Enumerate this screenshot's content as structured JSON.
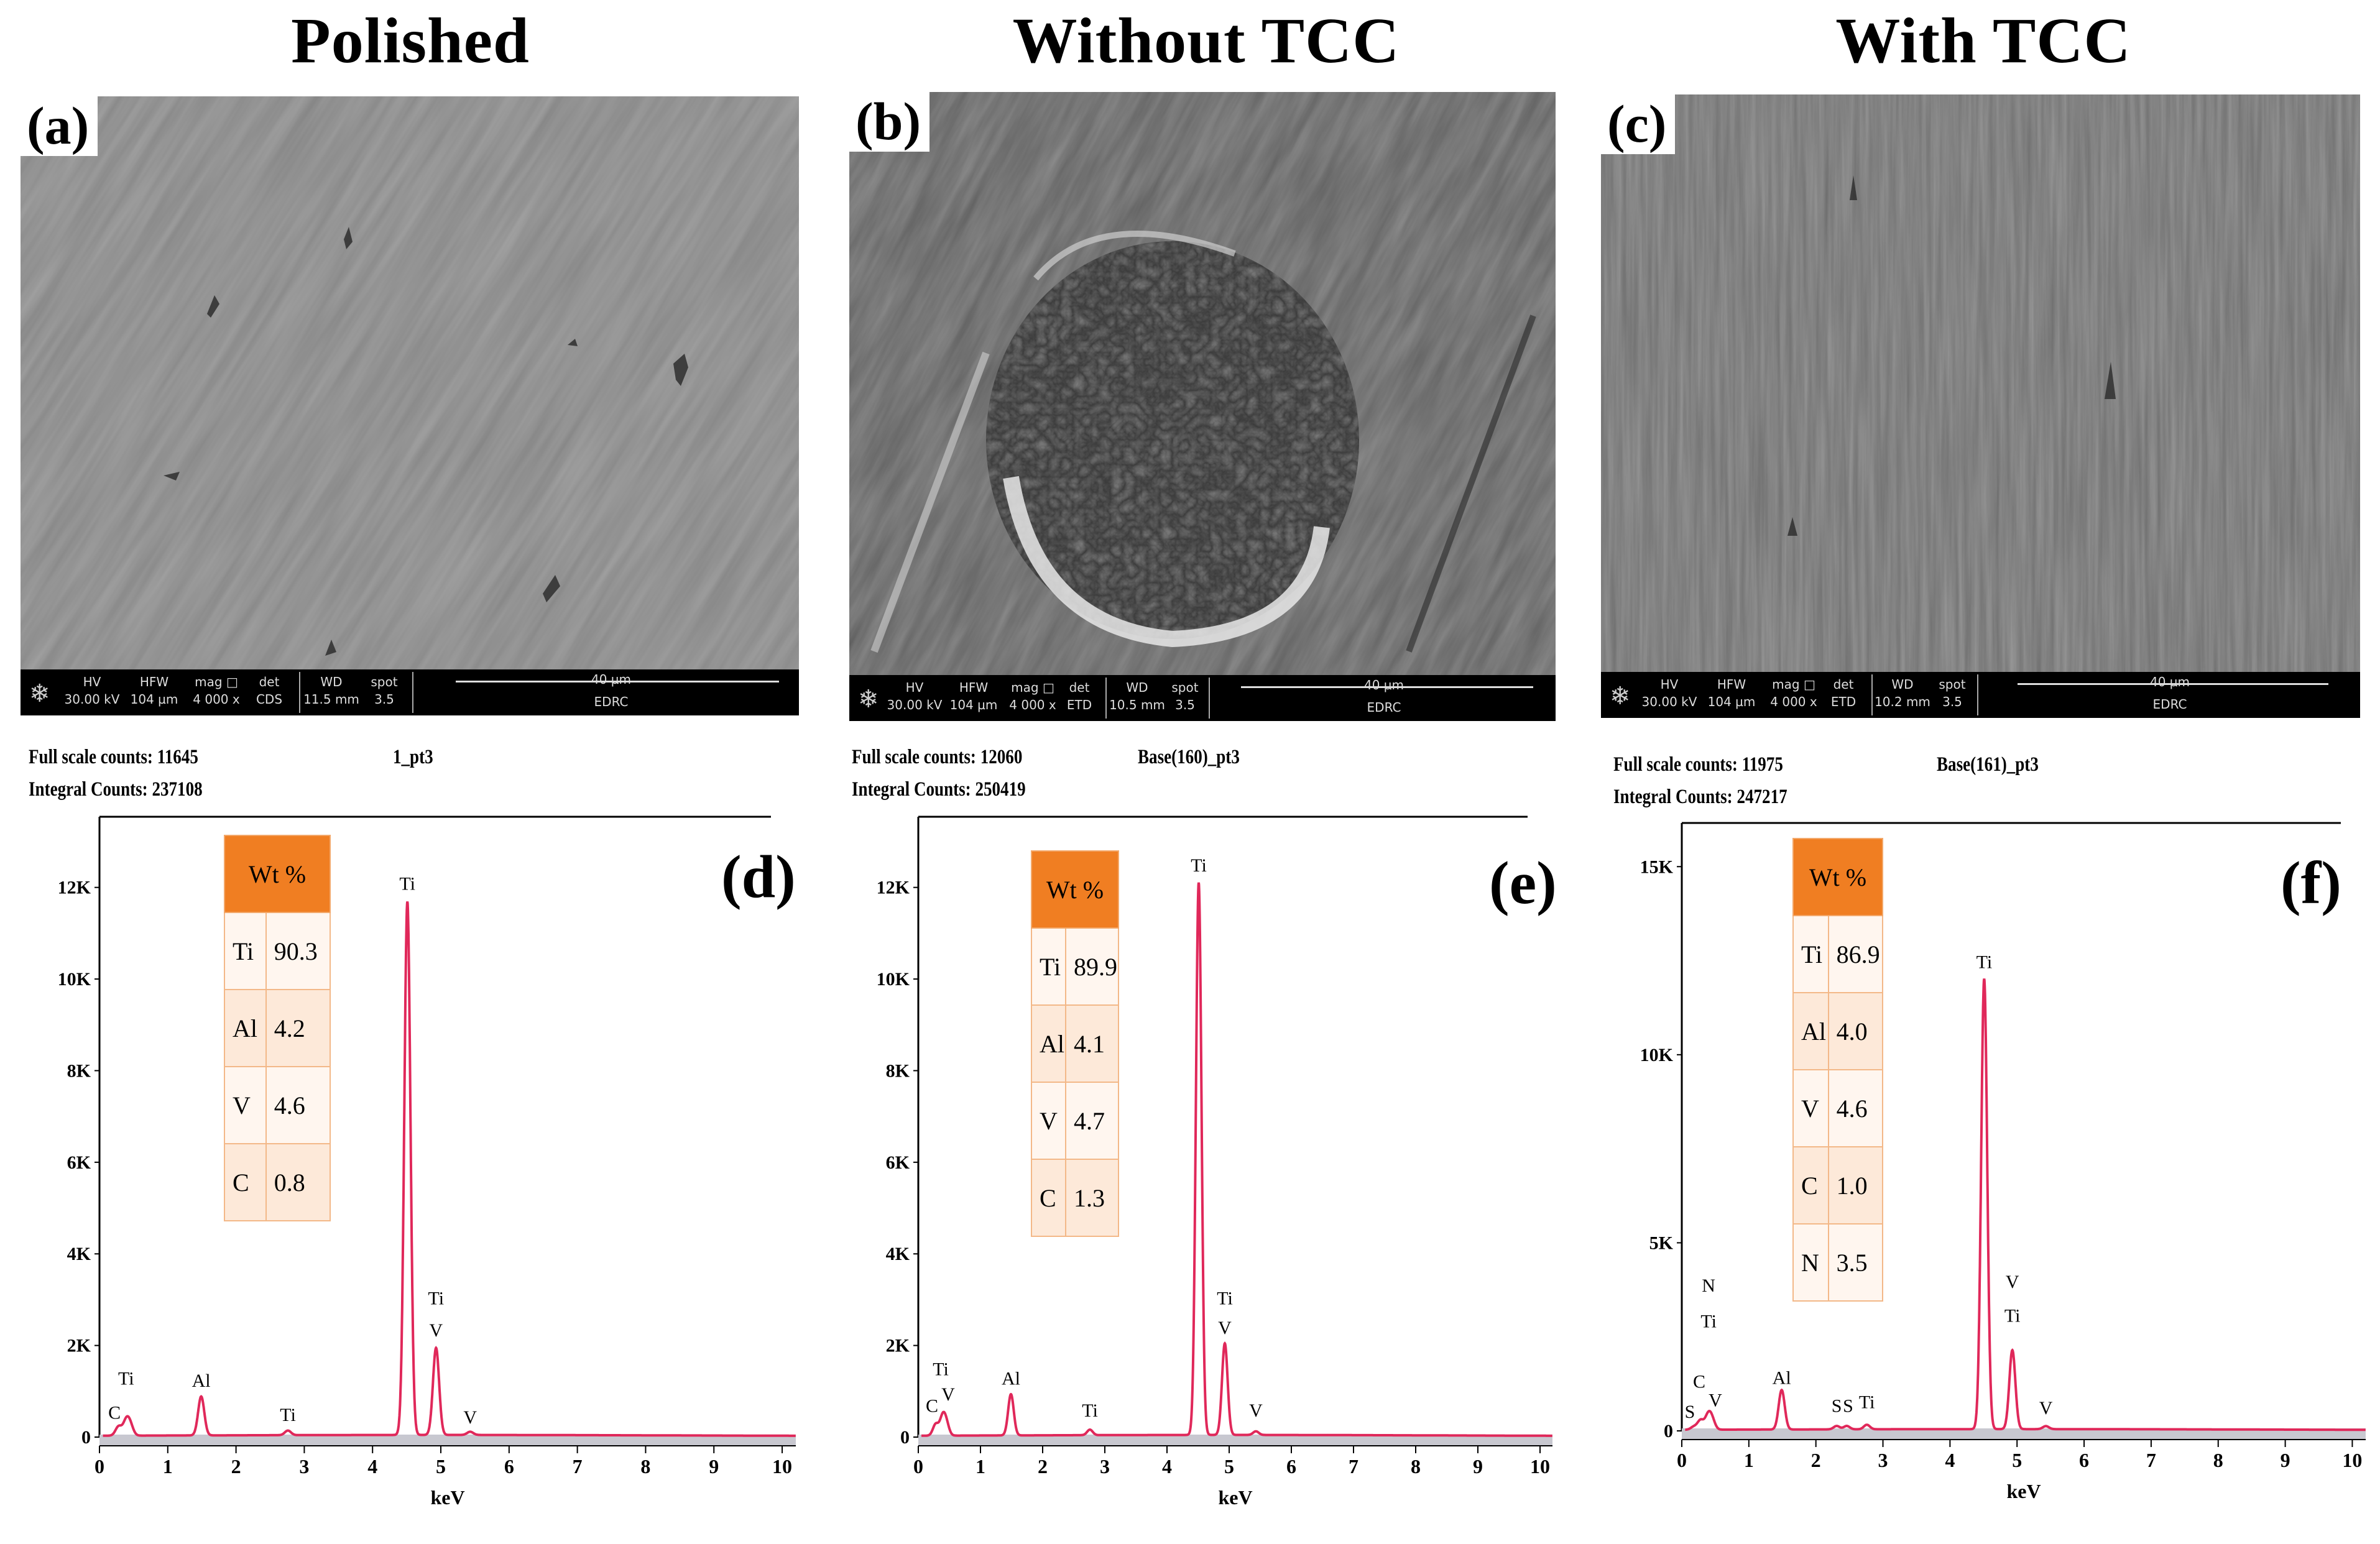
{
  "titles": [
    "Polished",
    "Without TCC",
    "With TCC"
  ],
  "sem_panels": [
    {
      "label": "(a)",
      "bar": {
        "hv_label": "HV",
        "hv": "30.00 kV",
        "hfw_label": "HFW",
        "hfw": "104 µm",
        "mag_label": "mag □",
        "mag": "4 000 x",
        "det_label": "det",
        "det": "CDS",
        "wd_label": "WD",
        "wd": "11.5 mm",
        "spot_label": "spot",
        "spot": "3.5",
        "scale": "40 µm",
        "org": "EDRC"
      }
    },
    {
      "label": "(b)",
      "bar": {
        "hv_label": "HV",
        "hv": "30.00 kV",
        "hfw_label": "HFW",
        "hfw": "104 µm",
        "mag_label": "mag □",
        "mag": "4 000 x",
        "det_label": "det",
        "det": "ETD",
        "wd_label": "WD",
        "wd": "10.5 mm",
        "spot_label": "spot",
        "spot": "3.5",
        "scale": "40 µm",
        "org": "EDRC"
      }
    },
    {
      "label": "(c)",
      "bar": {
        "hv_label": "HV",
        "hv": "30.00 kV",
        "hfw_label": "HFW",
        "hfw": "104 µm",
        "mag_label": "mag □",
        "mag": "4 000 x",
        "det_label": "det",
        "det": "ETD",
        "wd_label": "WD",
        "wd": "10.2 mm",
        "spot_label": "spot",
        "spot": "3.5",
        "scale": "40 µm",
        "org": "EDRC"
      }
    }
  ],
  "eds_panels": [
    {
      "full_scale": "Full scale counts: 11645",
      "integral": "Integral Counts: 237108",
      "spectrum_title": "1_pt3",
      "letter": "(d)",
      "table_header": "Wt %",
      "rows": [
        [
          "Ti",
          "90.3"
        ],
        [
          "Al",
          "4.2"
        ],
        [
          "V",
          "4.6"
        ],
        [
          "C",
          "0.8"
        ]
      ]
    },
    {
      "full_scale": "Full scale counts: 12060",
      "integral": "Integral Counts: 250419",
      "spectrum_title": "Base(160)_pt3",
      "letter": "(e)",
      "table_header": "Wt %",
      "rows": [
        [
          "Ti",
          "89.9"
        ],
        [
          "Al",
          "4.1"
        ],
        [
          "V",
          "4.7"
        ],
        [
          "C",
          "1.3"
        ]
      ]
    },
    {
      "full_scale": "Full scale counts: 11975",
      "integral": "Integral Counts: 247217",
      "spectrum_title": "Base(161)_pt3",
      "letter": "(f)",
      "table_header": "Wt %",
      "rows": [
        [
          "Ti",
          "86.9"
        ],
        [
          "Al",
          "4.0"
        ],
        [
          "V",
          "4.6"
        ],
        [
          "C",
          "1.0"
        ],
        [
          "N",
          "3.5"
        ]
      ]
    }
  ],
  "chart_data": [
    {
      "type": "line",
      "title": "1_pt3",
      "xlabel": "keV",
      "ylabel": "",
      "xlim": [
        0,
        10.2
      ],
      "ylim": [
        0,
        13000
      ],
      "x_ticks": [
        "0",
        "1",
        "2",
        "3",
        "4",
        "5",
        "6",
        "7",
        "8",
        "9",
        "10"
      ],
      "y_ticks": [
        {
          "v": 0,
          "t": "0"
        },
        {
          "v": 2000,
          "t": "2K"
        },
        {
          "v": 4000,
          "t": "4K"
        },
        {
          "v": 6000,
          "t": "6K"
        },
        {
          "v": 8000,
          "t": "8K"
        },
        {
          "v": 10000,
          "t": "10K"
        },
        {
          "v": 12000,
          "t": "12K"
        }
      ],
      "peaks": [
        [
          0.28,
          200
        ],
        [
          0.39,
          300
        ],
        [
          0.45,
          220
        ],
        [
          1.49,
          850
        ],
        [
          2.76,
          100
        ],
        [
          4.51,
          11645
        ],
        [
          4.93,
          1900
        ],
        [
          5.43,
          70
        ]
      ],
      "peak_labels": [
        {
          "x": 0.22,
          "v": 400,
          "t": "C"
        },
        {
          "x": 0.39,
          "v": 1150,
          "t": "Ti"
        },
        {
          "x": 1.49,
          "v": 1100,
          "t": "Al"
        },
        {
          "x": 2.76,
          "v": 350,
          "t": "Ti"
        },
        {
          "x": 4.51,
          "v": 11950,
          "t": "Ti"
        },
        {
          "x": 4.93,
          "v": 2900,
          "t": "Ti"
        },
        {
          "x": 4.93,
          "v": 2200,
          "t": "V"
        },
        {
          "x": 5.43,
          "v": 300,
          "t": "V"
        }
      ]
    },
    {
      "type": "line",
      "title": "Base(160)_pt3",
      "xlabel": "keV",
      "ylabel": "",
      "xlim": [
        0,
        10.2
      ],
      "ylim": [
        0,
        13000
      ],
      "x_ticks": [
        "0",
        "1",
        "2",
        "3",
        "4",
        "5",
        "6",
        "7",
        "8",
        "9",
        "10"
      ],
      "y_ticks": [
        {
          "v": 0,
          "t": "0"
        },
        {
          "v": 2000,
          "t": "2K"
        },
        {
          "v": 4000,
          "t": "4K"
        },
        {
          "v": 6000,
          "t": "6K"
        },
        {
          "v": 8000,
          "t": "8K"
        },
        {
          "v": 10000,
          "t": "10K"
        },
        {
          "v": 12000,
          "t": "12K"
        }
      ],
      "peaks": [
        [
          0.28,
          250
        ],
        [
          0.39,
          380
        ],
        [
          0.45,
          250
        ],
        [
          1.49,
          900
        ],
        [
          2.76,
          120
        ],
        [
          4.51,
          12060
        ],
        [
          4.93,
          2000
        ],
        [
          5.43,
          80
        ]
      ],
      "peak_labels": [
        {
          "x": 0.22,
          "v": 550,
          "t": "C"
        },
        {
          "x": 0.36,
          "v": 1350,
          "t": "Ti"
        },
        {
          "x": 0.48,
          "v": 800,
          "t": "V"
        },
        {
          "x": 1.49,
          "v": 1150,
          "t": "Al"
        },
        {
          "x": 2.76,
          "v": 450,
          "t": "Ti"
        },
        {
          "x": 4.51,
          "v": 12350,
          "t": "Ti"
        },
        {
          "x": 4.93,
          "v": 2900,
          "t": "Ti"
        },
        {
          "x": 4.93,
          "v": 2250,
          "t": "V"
        },
        {
          "x": 5.43,
          "v": 450,
          "t": "V"
        }
      ]
    },
    {
      "type": "line",
      "title": "Base(161)_pt3",
      "xlabel": "keV",
      "ylabel": "",
      "xlim": [
        0,
        10.2
      ],
      "ylim": [
        0,
        15500
      ],
      "x_ticks": [
        "0",
        "1",
        "2",
        "3",
        "4",
        "5",
        "6",
        "7",
        "8",
        "9",
        "10"
      ],
      "y_ticks": [
        {
          "v": 0,
          "t": "0"
        },
        {
          "v": 5000,
          "t": "5K"
        },
        {
          "v": 10000,
          "t": "10K"
        },
        {
          "v": 15000,
          "t": "15K"
        }
      ],
      "peaks": [
        [
          0.18,
          80
        ],
        [
          0.28,
          250
        ],
        [
          0.39,
          350
        ],
        [
          0.45,
          260
        ],
        [
          1.49,
          1050
        ],
        [
          2.31,
          90
        ],
        [
          2.46,
          90
        ],
        [
          2.76,
          120
        ],
        [
          4.51,
          11975
        ],
        [
          4.93,
          2100
        ],
        [
          5.43,
          80
        ]
      ],
      "peak_labels": [
        {
          "x": 0.12,
          "v": 350,
          "t": "S"
        },
        {
          "x": 0.26,
          "v": 1150,
          "t": "C"
        },
        {
          "x": 0.5,
          "v": 650,
          "t": "V"
        },
        {
          "x": 0.4,
          "v": 2750,
          "t": "Ti"
        },
        {
          "x": 0.4,
          "v": 3700,
          "t": "N"
        },
        {
          "x": 1.49,
          "v": 1250,
          "t": "Al"
        },
        {
          "x": 2.31,
          "v": 500,
          "t": "S"
        },
        {
          "x": 2.48,
          "v": 500,
          "t": "S"
        },
        {
          "x": 2.76,
          "v": 600,
          "t": "Ti"
        },
        {
          "x": 4.51,
          "v": 12300,
          "t": "Ti"
        },
        {
          "x": 4.93,
          "v": 2900,
          "t": "Ti"
        },
        {
          "x": 4.93,
          "v": 3800,
          "t": "V"
        },
        {
          "x": 5.43,
          "v": 450,
          "t": "V"
        }
      ]
    }
  ]
}
